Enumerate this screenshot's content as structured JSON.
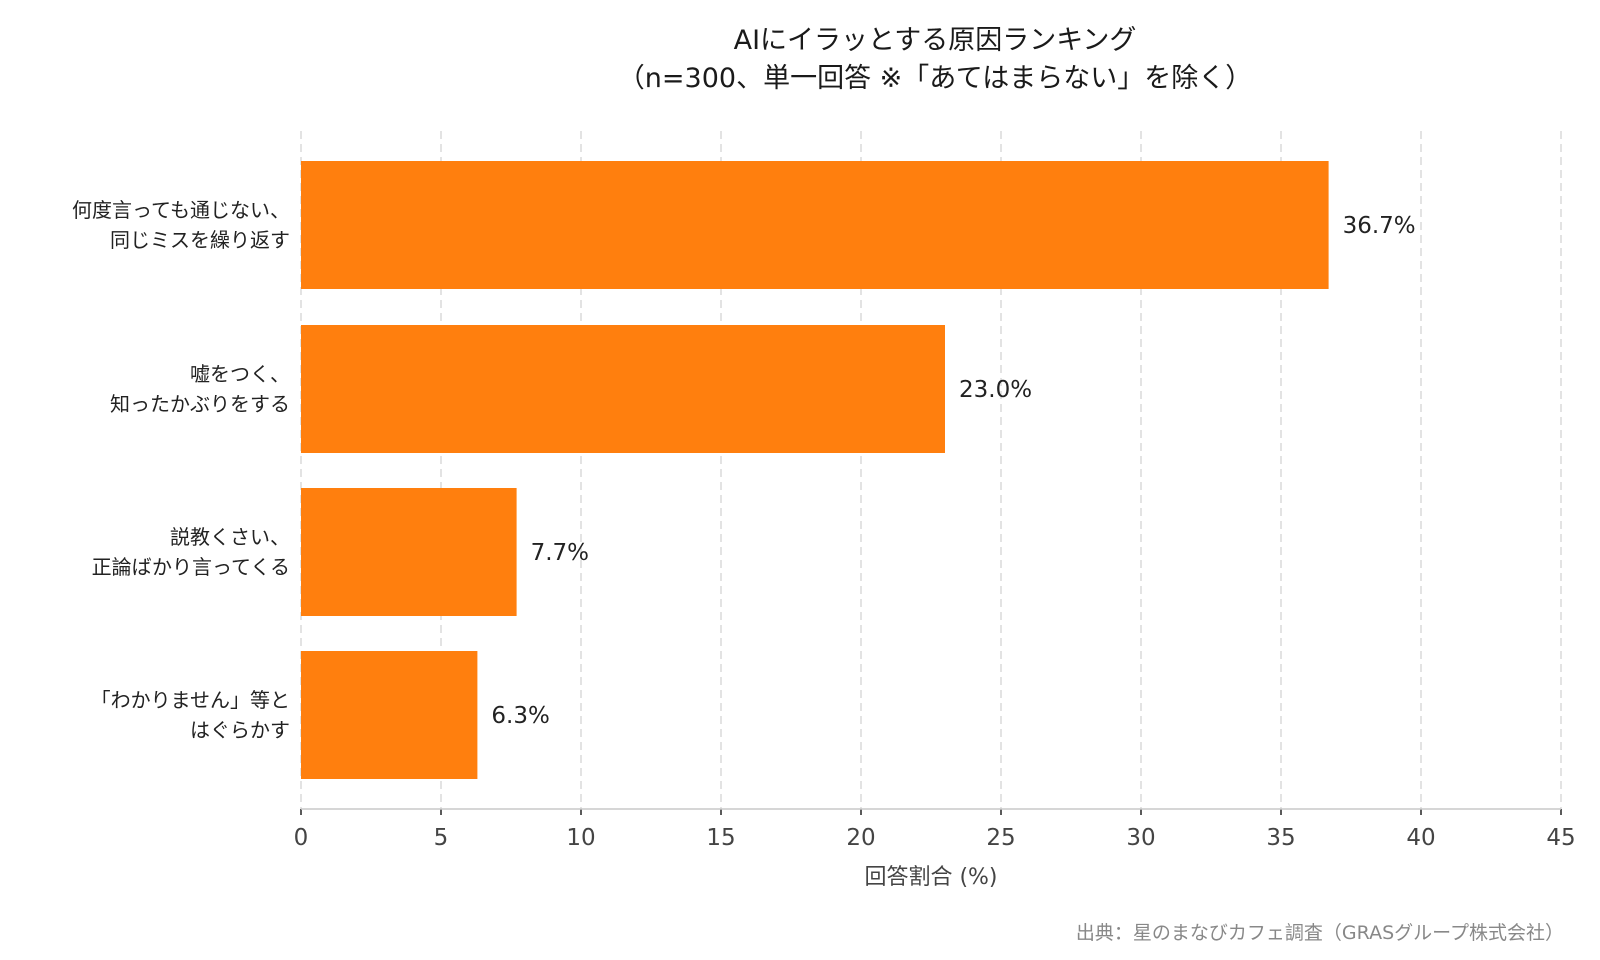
{
  "chart_data": {
    "type": "bar",
    "orientation": "horizontal",
    "title": "AIにイラッとする原因ランキング",
    "subtitle": "（n=300、単一回答 ※「あてはまらない」を除く）",
    "categories": [
      [
        "何度言っても通じない、",
        "同じミスを繰り返す"
      ],
      [
        "嘘をつく、",
        "知ったかぶりをする"
      ],
      [
        "説教くさい、",
        "正論ばかり言ってくる"
      ],
      [
        "「わかりません」等と",
        "はぐらかす"
      ]
    ],
    "values": [
      36.7,
      23.0,
      7.7,
      6.3
    ],
    "value_labels": [
      "36.7%",
      "23.0%",
      "7.7%",
      "6.3%"
    ],
    "xlabel": "回答割合 (%)",
    "xlim": [
      0,
      45
    ],
    "xticks": [
      "0",
      "5",
      "10",
      "15",
      "20",
      "25",
      "30",
      "35",
      "40",
      "45"
    ],
    "grid": "vertical dashed",
    "bar_color": "#FF7F0E",
    "source": "出典：星のまなびカフェ調査（GRASグループ株式会社）"
  }
}
